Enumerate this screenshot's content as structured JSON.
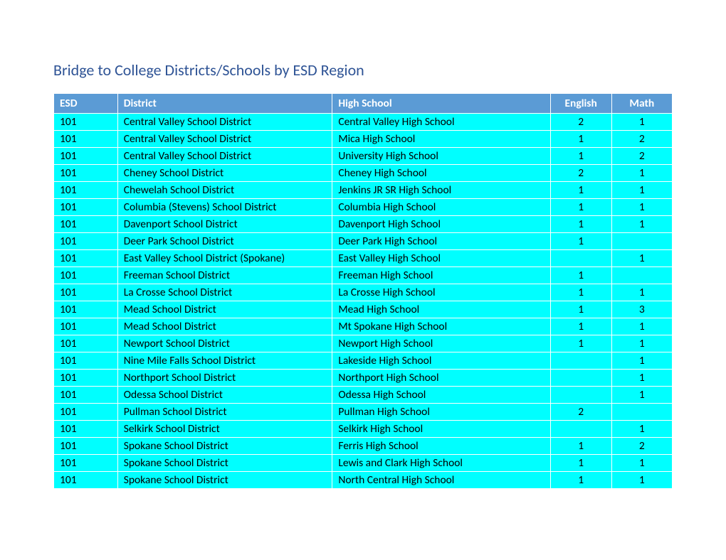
{
  "title": "Bridge to College Districts/Schools by ESD Region",
  "table": {
    "columns": [
      {
        "label": "ESD",
        "align": "left",
        "widthClass": "col-esd"
      },
      {
        "label": "District",
        "align": "left",
        "widthClass": "col-district"
      },
      {
        "label": "High School",
        "align": "left",
        "widthClass": "col-school"
      },
      {
        "label": "English",
        "align": "center",
        "widthClass": "col-english"
      },
      {
        "label": "Math",
        "align": "center",
        "widthClass": "col-math"
      }
    ],
    "rows": [
      [
        "101",
        "Central Valley School District",
        "Central Valley High School",
        "2",
        "1"
      ],
      [
        "101",
        "Central Valley School District",
        "Mica High School",
        "1",
        "2"
      ],
      [
        "101",
        "Central Valley School District",
        "University High School",
        "1",
        "2"
      ],
      [
        "101",
        "Cheney School District",
        "Cheney High School",
        "2",
        "1"
      ],
      [
        "101",
        "Chewelah School District",
        "Jenkins JR SR High School",
        "1",
        "1"
      ],
      [
        "101",
        "Columbia (Stevens) School District",
        "Columbia High School",
        "1",
        "1"
      ],
      [
        "101",
        "Davenport School District",
        "Davenport High School",
        "1",
        "1"
      ],
      [
        "101",
        "Deer Park School District",
        "Deer Park High School",
        "1",
        ""
      ],
      [
        "101",
        "East Valley School District (Spokane)",
        "East Valley High School",
        "",
        "1"
      ],
      [
        "101",
        "Freeman School District",
        "Freeman High School",
        "1",
        ""
      ],
      [
        "101",
        "La Crosse School District",
        "La Crosse High School",
        "1",
        "1"
      ],
      [
        "101",
        "Mead School District",
        "Mead High School",
        "1",
        "3"
      ],
      [
        "101",
        "Mead School District",
        "Mt Spokane High School",
        "1",
        "1"
      ],
      [
        "101",
        "Newport School District",
        "Newport High School",
        "1",
        "1"
      ],
      [
        "101",
        "Nine Mile Falls School District",
        "Lakeside High School",
        "",
        "1"
      ],
      [
        "101",
        "Northport School District",
        "Northport High School",
        "",
        "1"
      ],
      [
        "101",
        "Odessa School District",
        "Odessa High School",
        "",
        "1"
      ],
      [
        "101",
        "Pullman School District",
        "Pullman High School",
        "2",
        ""
      ],
      [
        "101",
        "Selkirk School District",
        "Selkirk High School",
        "",
        "1"
      ],
      [
        "101",
        "Spokane School District",
        "Ferris High School",
        "1",
        "2"
      ],
      [
        "101",
        "Spokane School District",
        "Lewis and Clark High School",
        "1",
        "1"
      ],
      [
        "101",
        "Spokane School District",
        "North Central High School",
        "1",
        "1"
      ]
    ]
  },
  "colors": {
    "title_color": "#2e5395",
    "header_bg": "#5b9bd5",
    "header_text": "#ffffff",
    "row_bg": "#00ffff",
    "border": "#ffffff",
    "cell_text": "#000000"
  }
}
